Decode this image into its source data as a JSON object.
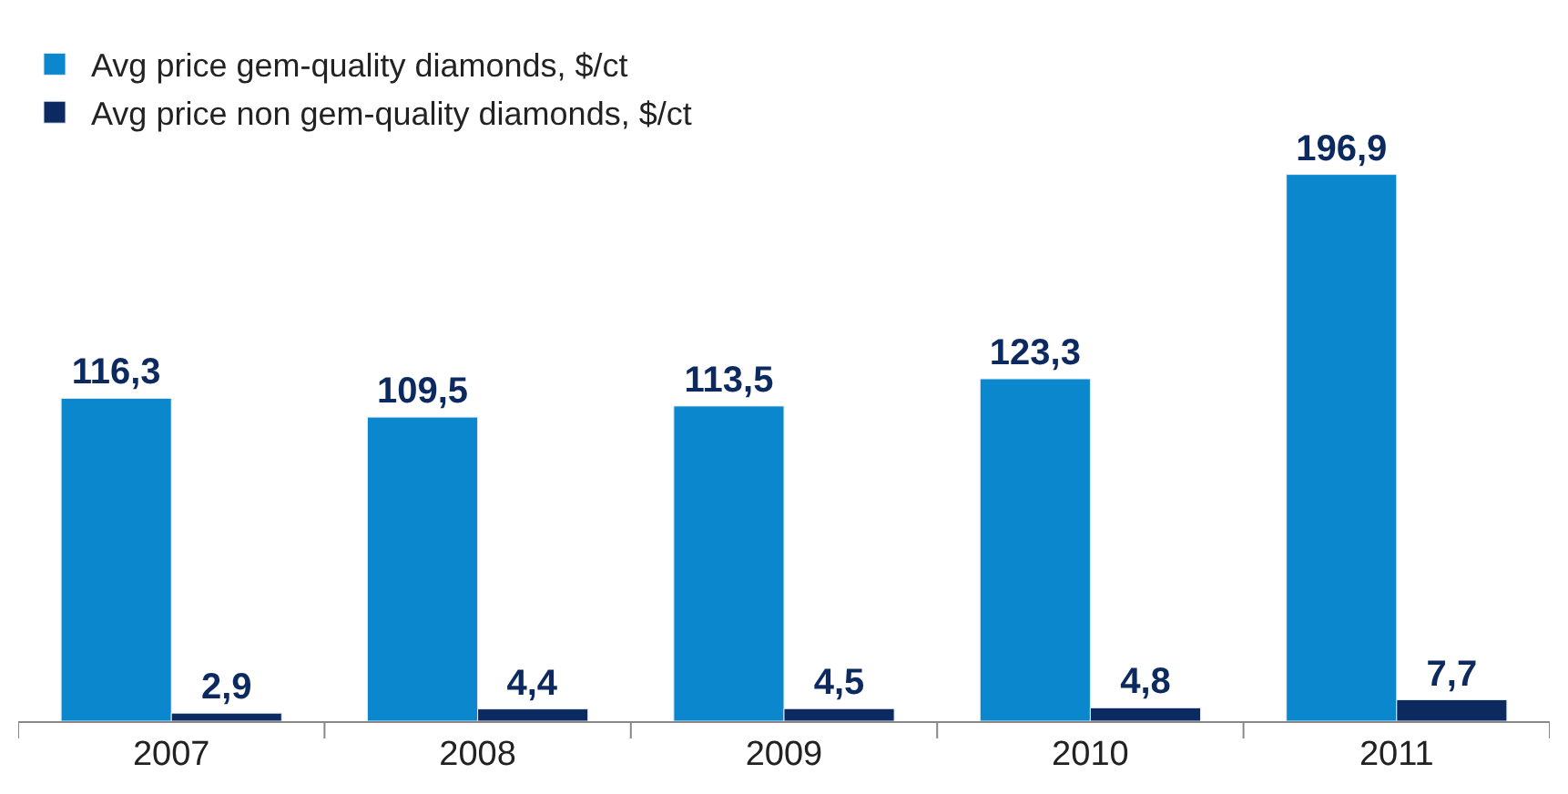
{
  "chart_data": {
    "type": "bar",
    "categories": [
      "2007",
      "2008",
      "2009",
      "2010",
      "2011"
    ],
    "series": [
      {
        "name": "Avg price gem-quality diamonds, $/ct",
        "color": "#0b87cd",
        "values": [
          116.3,
          109.5,
          113.5,
          123.3,
          196.9
        ],
        "value_labels": [
          "116,3",
          "109,5",
          "113,5",
          "123,3",
          "196,9"
        ]
      },
      {
        "name": "Avg price non gem-quality diamonds, $/ct",
        "color": "#0c2a5f",
        "values": [
          2.9,
          4.4,
          4.5,
          4.8,
          7.7
        ],
        "value_labels": [
          "2,9",
          "4,4",
          "4,5",
          "4,8",
          "7,7"
        ]
      }
    ],
    "legend": "top left",
    "tick_labels": "x"
  }
}
